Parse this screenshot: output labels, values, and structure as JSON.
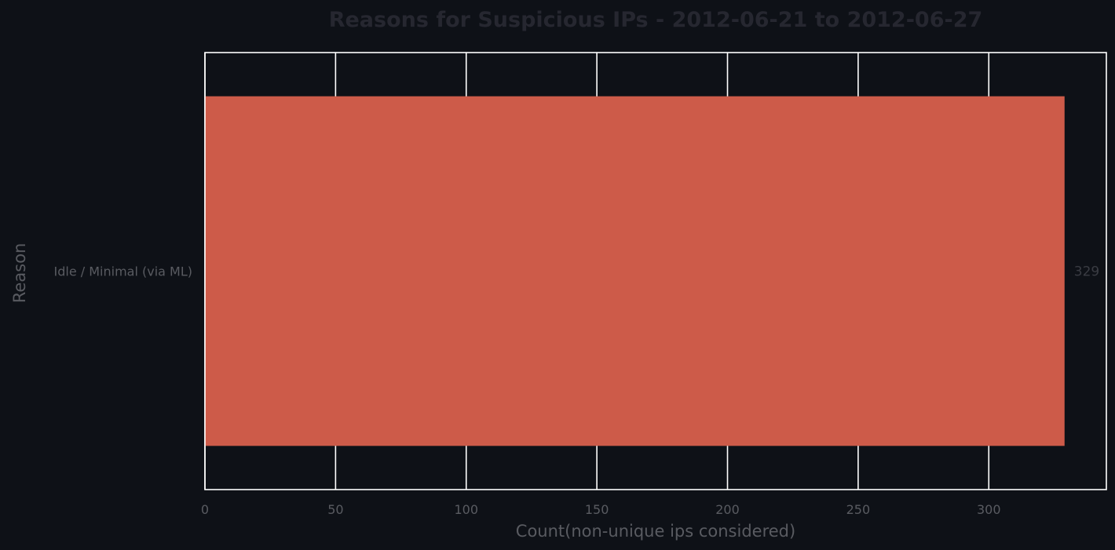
{
  "chart_data": {
    "type": "bar",
    "orientation": "horizontal",
    "title": "Reasons for Suspicious IPs - 2012-06-21 to 2012-06-27",
    "xlabel": "Count(non-unique ips considered)",
    "ylabel": "Reason",
    "categories": [
      "Idle / Minimal (via ML)"
    ],
    "values": [
      329
    ],
    "data_labels": [
      "329"
    ],
    "xlim": [
      0,
      345
    ],
    "xticks": [
      0,
      50,
      100,
      150,
      200,
      250,
      300
    ],
    "xtick_labels": [
      "0",
      "50",
      "100",
      "150",
      "200",
      "250",
      "300"
    ],
    "grid": true,
    "legend": "none",
    "colors": {
      "background": "#0e1117",
      "bar": "#cd5b49",
      "grid": "#ffffff",
      "title": "#262730",
      "axis_text": "#595b61",
      "data_label": "#3a3c43"
    }
  }
}
